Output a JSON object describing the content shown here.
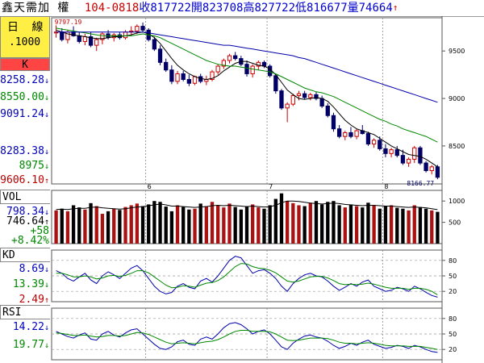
{
  "header": {
    "name": "鑫天需加 權",
    "date": "104-0818",
    "close_label": "收",
    "close": "817722",
    "open_label": "開",
    "open": "823708",
    "high_label": "高",
    "high": "827722",
    "low_label": "低",
    "low": "816677",
    "volume_label": "量",
    "volume": "74664",
    "arrow": "↑"
  },
  "left_panel": {
    "period_line1": "日 線",
    "period_line2": ".1000",
    "k_label": "K",
    "k_values": [
      {
        "text": "8258.28",
        "arrow": "↓",
        "color": "#0000bb"
      },
      {
        "text": "8550.00",
        "arrow": "↓",
        "color": "#008800"
      },
      {
        "text": "9091.24",
        "arrow": "↓",
        "color": "#0000bb"
      },
      {
        "text": "8283.38",
        "arrow": "↓",
        "color": "#0000bb"
      },
      {
        "text": "8975",
        "arrow": "↓",
        "color": "#008800"
      },
      {
        "text": "9606.10",
        "arrow": "↑",
        "color": "#bb0000"
      }
    ],
    "vol_label": "VOL",
    "vol_values": [
      {
        "text": "798.34",
        "arrow": "↓",
        "color": "#0000bb"
      },
      {
        "text": "746.64",
        "arrow": "↑",
        "color": "#000000"
      },
      {
        "text": "+58",
        "arrow": "",
        "color": "#008800"
      },
      {
        "text": "+8.42%",
        "arrow": "",
        "color": "#008800"
      }
    ],
    "kd_label": "KD",
    "kd_values": [
      {
        "text": "8.69",
        "arrow": "↓",
        "color": "#0000bb"
      },
      {
        "text": "13.39",
        "arrow": "↓",
        "color": "#008800"
      },
      {
        "text": "2.49",
        "arrow": "↑",
        "color": "#bb0000"
      }
    ],
    "rsi_label": "RSI",
    "rsi_values": [
      {
        "text": "14.22",
        "arrow": "↓",
        "color": "#0000bb"
      },
      {
        "text": "19.77",
        "arrow": "↓",
        "color": "#008800"
      }
    ]
  },
  "chart_data": [
    {
      "type": "candlestick",
      "panel": "price",
      "y_ticks": [
        8500,
        9000,
        9500
      ],
      "ylim": [
        8100,
        9850
      ],
      "month_markers": [
        {
          "label": "6",
          "index": 16
        },
        {
          "label": "7",
          "index": 37
        },
        {
          "label": "8",
          "index": 57
        }
      ],
      "annotations": [
        {
          "text": "9797.19",
          "index": 0,
          "value": 9797.19
        },
        {
          "text": "8166.77",
          "index": 66,
          "value": 8166.77
        }
      ],
      "ohlc": [
        [
          9690,
          9770,
          9640,
          9700
        ],
        [
          9700,
          9740,
          9600,
          9620
        ],
        [
          9620,
          9720,
          9580,
          9700
        ],
        [
          9700,
          9760,
          9650,
          9660
        ],
        [
          9660,
          9700,
          9580,
          9600
        ],
        [
          9600,
          9680,
          9560,
          9650
        ],
        [
          9650,
          9700,
          9540,
          9560
        ],
        [
          9560,
          9640,
          9500,
          9620
        ],
        [
          9620,
          9700,
          9570,
          9680
        ],
        [
          9680,
          9720,
          9620,
          9640
        ],
        [
          9640,
          9690,
          9600,
          9670
        ],
        [
          9670,
          9700,
          9620,
          9640
        ],
        [
          9640,
          9720,
          9620,
          9700
        ],
        [
          9700,
          9760,
          9660,
          9710
        ],
        [
          9710,
          9780,
          9680,
          9760
        ],
        [
          9760,
          9800,
          9700,
          9720
        ],
        [
          9720,
          9740,
          9600,
          9620
        ],
        [
          9620,
          9650,
          9500,
          9520
        ],
        [
          9520,
          9560,
          9350,
          9380
        ],
        [
          9380,
          9420,
          9280,
          9300
        ],
        [
          9300,
          9350,
          9150,
          9180
        ],
        [
          9180,
          9290,
          9150,
          9260
        ],
        [
          9260,
          9290,
          9180,
          9200
        ],
        [
          9200,
          9250,
          9130,
          9160
        ],
        [
          9160,
          9240,
          9140,
          9230
        ],
        [
          9230,
          9260,
          9160,
          9180
        ],
        [
          9180,
          9240,
          9140,
          9200
        ],
        [
          9200,
          9300,
          9180,
          9280
        ],
        [
          9280,
          9360,
          9250,
          9340
        ],
        [
          9340,
          9420,
          9310,
          9400
        ],
        [
          9400,
          9470,
          9370,
          9450
        ],
        [
          9450,
          9490,
          9400,
          9420
        ],
        [
          9420,
          9450,
          9340,
          9360
        ],
        [
          9360,
          9400,
          9230,
          9260
        ],
        [
          9260,
          9360,
          9220,
          9340
        ],
        [
          9340,
          9400,
          9300,
          9380
        ],
        [
          9380,
          9400,
          9320,
          9340
        ],
        [
          9340,
          9360,
          9220,
          9240
        ],
        [
          9240,
          9260,
          9050,
          9080
        ],
        [
          9080,
          9100,
          8880,
          8900
        ],
        [
          8900,
          8960,
          8750,
          8940
        ],
        [
          8940,
          9050,
          8920,
          9030
        ],
        [
          9030,
          9080,
          8980,
          9050
        ],
        [
          9050,
          9080,
          8990,
          9010
        ],
        [
          9010,
          9060,
          8980,
          9040
        ],
        [
          9040,
          9070,
          8980,
          9000
        ],
        [
          9000,
          9030,
          8900,
          8920
        ],
        [
          8920,
          8950,
          8800,
          8820
        ],
        [
          8820,
          8850,
          8650,
          8680
        ],
        [
          8680,
          8720,
          8580,
          8600
        ],
        [
          8600,
          8660,
          8560,
          8640
        ],
        [
          8640,
          8700,
          8580,
          8600
        ],
        [
          8600,
          8680,
          8570,
          8660
        ],
        [
          8660,
          8720,
          8620,
          8630
        ],
        [
          8630,
          8650,
          8500,
          8520
        ],
        [
          8520,
          8580,
          8480,
          8560
        ],
        [
          8560,
          8600,
          8450,
          8470
        ],
        [
          8470,
          8520,
          8380,
          8420
        ],
        [
          8420,
          8480,
          8380,
          8460
        ],
        [
          8460,
          8500,
          8380,
          8400
        ],
        [
          8400,
          8460,
          8300,
          8320
        ],
        [
          8320,
          8380,
          8280,
          8360
        ],
        [
          8360,
          8500,
          8320,
          8480
        ],
        [
          8480,
          8500,
          8300,
          8320
        ],
        [
          8320,
          8340,
          8220,
          8240
        ],
        [
          8240,
          8300,
          8200,
          8280
        ],
        [
          8280,
          8300,
          8150,
          8170
        ]
      ],
      "ma": [
        {
          "color": "#000000",
          "values": [
            9720,
            9700,
            9680,
            9670,
            9660,
            9650,
            9640,
            9630,
            9630,
            9640,
            9650,
            9650,
            9660,
            9670,
            9690,
            9700,
            9680,
            9640,
            9580,
            9500,
            9420,
            9350,
            9300,
            9260,
            9230,
            9210,
            9200,
            9210,
            9240,
            9290,
            9330,
            9370,
            9390,
            9390,
            9370,
            9350,
            9340,
            9310,
            9250,
            9170,
            9090,
            9040,
            9000,
            8990,
            9000,
            9010,
            9000,
            8970,
            8910,
            8840,
            8770,
            8720,
            8680,
            8660,
            8640,
            8620,
            8580,
            8540,
            8500,
            8470,
            8440,
            8410,
            8400,
            8390,
            8360,
            8320,
            8280
          ]
        },
        {
          "color": "#008800",
          "values": [
            9740,
            9730,
            9720,
            9710,
            9700,
            9690,
            9680,
            9670,
            9660,
            9660,
            9660,
            9660,
            9660,
            9660,
            9670,
            9680,
            9670,
            9660,
            9640,
            9610,
            9580,
            9550,
            9520,
            9490,
            9460,
            9430,
            9400,
            9380,
            9360,
            9350,
            9340,
            9340,
            9330,
            9320,
            9310,
            9300,
            9290,
            9280,
            9260,
            9230,
            9200,
            9170,
            9140,
            9110,
            9090,
            9070,
            9060,
            9040,
            9020,
            8990,
            8960,
            8930,
            8900,
            8870,
            8840,
            8810,
            8780,
            8760,
            8730,
            8710,
            8680,
            8660,
            8640,
            8620,
            8600,
            8570,
            8540
          ]
        },
        {
          "color": "#0000aa",
          "values": [
            9700,
            9700,
            9700,
            9700,
            9700,
            9700,
            9700,
            9700,
            9700,
            9700,
            9700,
            9700,
            9700,
            9700,
            9700,
            9700,
            9690,
            9680,
            9670,
            9660,
            9650,
            9640,
            9630,
            9620,
            9610,
            9600,
            9590,
            9580,
            9570,
            9560,
            9560,
            9550,
            9540,
            9530,
            9520,
            9510,
            9500,
            9490,
            9480,
            9470,
            9460,
            9450,
            9430,
            9420,
            9400,
            9380,
            9360,
            9340,
            9320,
            9300,
            9280,
            9260,
            9240,
            9220,
            9200,
            9180,
            9160,
            9140,
            9120,
            9100,
            9080,
            9060,
            9040,
            9020,
            9000,
            8980,
            8960
          ]
        }
      ]
    },
    {
      "type": "bar",
      "panel": "volume",
      "y_ticks": [
        500,
        1000
      ],
      "ylim": [
        0,
        1250
      ],
      "values": [
        780,
        820,
        760,
        900,
        850,
        800,
        950,
        880,
        700,
        760,
        820,
        790,
        860,
        900,
        940,
        880,
        920,
        1000,
        980,
        870,
        760,
        900,
        860,
        800,
        820,
        940,
        880,
        980,
        900,
        850,
        940,
        860,
        800,
        880,
        920,
        850,
        820,
        900,
        1050,
        1180,
        1000,
        950,
        900,
        880,
        960,
        1000,
        920,
        980,
        1000,
        900,
        850,
        920,
        880,
        850,
        960,
        900,
        820,
        880,
        900,
        840,
        820,
        780,
        900,
        860,
        820,
        780,
        746
      ],
      "ma": [
        {
          "color": "#000000",
          "values": [
            800,
            810,
            800,
            820,
            830,
            830,
            850,
            860,
            840,
            830,
            820,
            810,
            820,
            840,
            860,
            870,
            890,
            910,
            930,
            910,
            880,
            880,
            870,
            860,
            850,
            860,
            870,
            890,
            900,
            890,
            900,
            890,
            880,
            870,
            880,
            870,
            860,
            870,
            900,
            960,
            1000,
            1000,
            990,
            970,
            950,
            940,
            930,
            940,
            950,
            940,
            920,
            910,
            900,
            890,
            900,
            900,
            890,
            880,
            880,
            870,
            860,
            850,
            860,
            850,
            840,
            820,
            798
          ]
        }
      ]
    },
    {
      "type": "line",
      "panel": "kd",
      "y_ticks": [
        20,
        50,
        80
      ],
      "ylim": [
        0,
        100
      ],
      "series": [
        {
          "color": "#0000aa",
          "values": [
            60,
            55,
            45,
            40,
            48,
            55,
            42,
            35,
            50,
            58,
            52,
            45,
            55,
            65,
            70,
            60,
            45,
            30,
            20,
            15,
            18,
            30,
            35,
            28,
            25,
            40,
            45,
            38,
            50,
            65,
            80,
            88,
            85,
            70,
            55,
            60,
            62,
            55,
            45,
            30,
            20,
            35,
            45,
            52,
            55,
            50,
            48,
            40,
            30,
            22,
            28,
            35,
            30,
            38,
            42,
            30,
            25,
            20,
            22,
            28,
            25,
            20,
            30,
            25,
            18,
            12,
            8.69
          ]
        },
        {
          "color": "#008800",
          "values": [
            55,
            55,
            52,
            48,
            48,
            50,
            48,
            44,
            46,
            50,
            51,
            49,
            51,
            55,
            60,
            60,
            56,
            48,
            40,
            32,
            27,
            28,
            31,
            30,
            28,
            32,
            36,
            37,
            41,
            48,
            58,
            68,
            74,
            73,
            68,
            65,
            64,
            61,
            56,
            48,
            40,
            38,
            40,
            44,
            48,
            49,
            49,
            46,
            41,
            35,
            33,
            34,
            33,
            34,
            36,
            34,
            31,
            28,
            26,
            26,
            26,
            24,
            26,
            26,
            24,
            20,
            13.39
          ]
        }
      ]
    },
    {
      "type": "line",
      "panel": "rsi",
      "y_ticks": [
        20,
        50,
        80
      ],
      "ylim": [
        0,
        100
      ],
      "series": [
        {
          "color": "#0000aa",
          "values": [
            55,
            50,
            45,
            42,
            48,
            52,
            40,
            38,
            50,
            55,
            48,
            44,
            52,
            58,
            60,
            50,
            40,
            30,
            22,
            20,
            25,
            35,
            38,
            30,
            28,
            40,
            44,
            40,
            50,
            62,
            70,
            72,
            68,
            60,
            50,
            55,
            58,
            50,
            38,
            25,
            20,
            32,
            40,
            46,
            48,
            44,
            42,
            36,
            28,
            22,
            26,
            32,
            28,
            34,
            38,
            30,
            26,
            22,
            24,
            28,
            26,
            22,
            28,
            25,
            20,
            16,
            14.22
          ]
        },
        {
          "color": "#008800",
          "values": [
            52,
            51,
            49,
            47,
            47,
            48,
            46,
            44,
            45,
            47,
            47,
            46,
            47,
            50,
            53,
            52,
            49,
            44,
            39,
            34,
            31,
            32,
            33,
            32,
            31,
            33,
            35,
            36,
            39,
            44,
            50,
            55,
            57,
            57,
            55,
            55,
            55,
            54,
            50,
            44,
            38,
            37,
            38,
            40,
            42,
            42,
            42,
            41,
            38,
            34,
            32,
            32,
            31,
            32,
            33,
            32,
            30,
            28,
            27,
            27,
            27,
            26,
            26,
            26,
            24,
            22,
            19.77
          ]
        }
      ]
    }
  ]
}
